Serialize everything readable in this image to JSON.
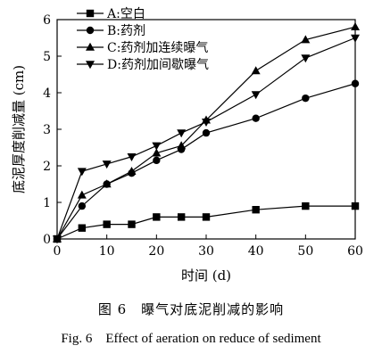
{
  "chart_data": {
    "type": "line",
    "xlabel": "时间 (d)",
    "ylabel": "底泥厚度削减量 (cm)",
    "xlim": [
      0,
      60
    ],
    "ylim": [
      0,
      6
    ],
    "xticks": [
      0,
      10,
      20,
      30,
      40,
      50,
      60
    ],
    "yticks": [
      0,
      1,
      2,
      3,
      4,
      5,
      6
    ],
    "grid": false,
    "legend_position": "top-left",
    "series": [
      {
        "name": "A:空白",
        "marker": "square",
        "x": [
          0,
          5,
          10,
          15,
          20,
          25,
          30,
          40,
          50,
          60
        ],
        "y": [
          0,
          0.3,
          0.4,
          0.4,
          0.6,
          0.6,
          0.6,
          0.8,
          0.9,
          0.9
        ]
      },
      {
        "name": "B:药剂",
        "marker": "circle",
        "x": [
          0,
          5,
          10,
          15,
          20,
          25,
          30,
          40,
          50,
          60
        ],
        "y": [
          0,
          0.9,
          1.5,
          1.8,
          2.15,
          2.45,
          2.9,
          3.3,
          3.85,
          4.25
        ]
      },
      {
        "name": "C:药剂加连续曝气",
        "marker": "triangle-up",
        "x": [
          0,
          5,
          10,
          15,
          20,
          25,
          30,
          40,
          50,
          60
        ],
        "y": [
          0,
          1.2,
          1.5,
          1.85,
          2.35,
          2.55,
          3.25,
          4.6,
          5.45,
          5.8
        ]
      },
      {
        "name": "D:药剂加间歇曝气",
        "marker": "triangle-down",
        "x": [
          0,
          5,
          10,
          15,
          20,
          25,
          30,
          40,
          50,
          60
        ],
        "y": [
          0,
          1.85,
          2.05,
          2.25,
          2.55,
          2.9,
          3.2,
          3.95,
          4.95,
          5.5
        ]
      }
    ]
  },
  "caption": {
    "cn": "图 6　曝气对底泥削减的影响",
    "en": "Fig. 6　Effect of aeration on reduce of sediment"
  }
}
